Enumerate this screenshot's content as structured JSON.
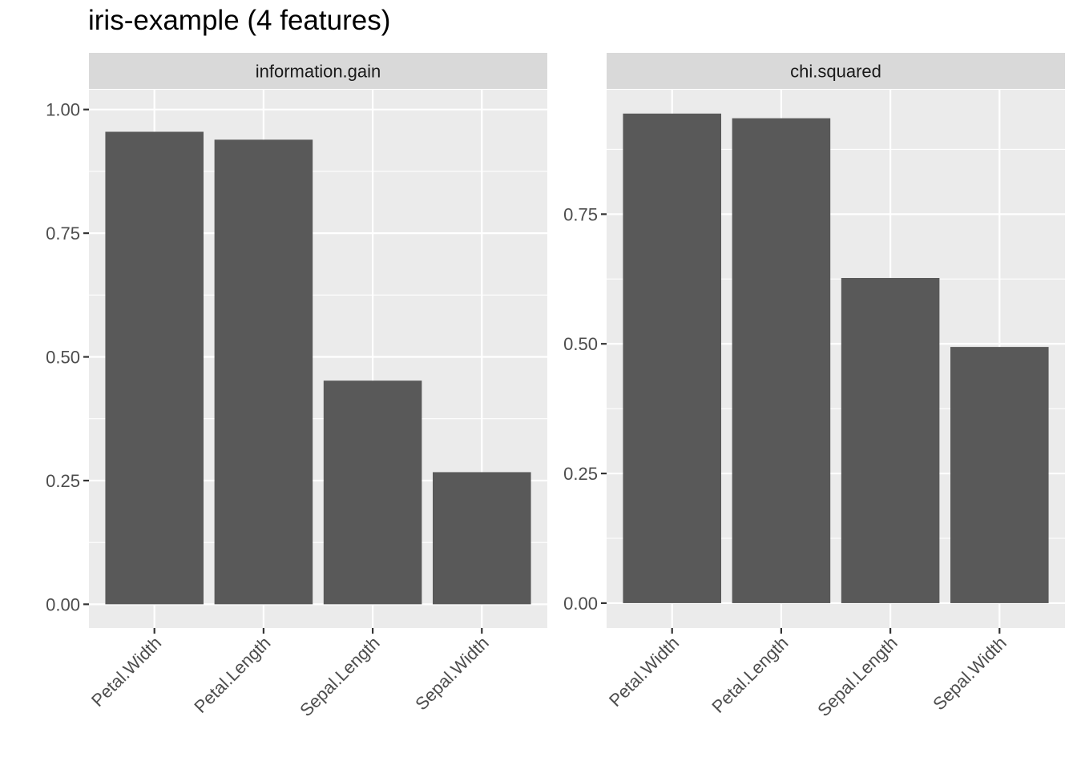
{
  "title": "iris-example (4 features)",
  "chart_data": {
    "type": "bar",
    "title": "iris-example (4 features)",
    "facets": [
      {
        "strip_label": "information.gain",
        "categories": [
          "Petal.Width",
          "Petal.Length",
          "Sepal.Length",
          "Sepal.Width"
        ],
        "values": [
          0.955,
          0.939,
          0.452,
          0.267
        ],
        "ylim": [
          -0.048,
          1.04
        ],
        "yticks": [
          0.0,
          0.25,
          0.5,
          0.75,
          1.0
        ],
        "ytick_labels": [
          "0.00",
          "0.25",
          "0.50",
          "0.75",
          "1.00"
        ]
      },
      {
        "strip_label": "chi.squared",
        "categories": [
          "Petal.Width",
          "Petal.Length",
          "Sepal.Length",
          "Sepal.Width"
        ],
        "values": [
          0.944,
          0.935,
          0.627,
          0.494
        ],
        "ylim": [
          -0.048,
          0.99
        ],
        "yticks": [
          0.0,
          0.25,
          0.5,
          0.75
        ],
        "ytick_labels": [
          "0.00",
          "0.25",
          "0.50",
          "0.75"
        ]
      }
    ],
    "grid": true,
    "colors": {
      "bar": "#595959",
      "panel": "#ebebeb",
      "strip": "#d9d9d9",
      "gridline": "#ffffff",
      "tick_text": "#4d4d4d",
      "strip_text": "#1a1a1a"
    }
  }
}
